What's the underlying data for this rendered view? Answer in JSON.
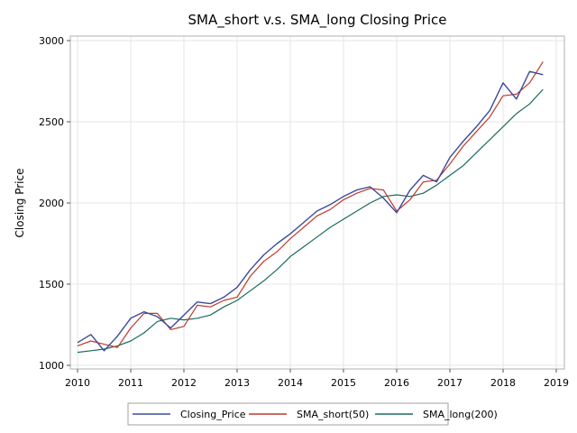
{
  "chart_data": {
    "type": "line",
    "title": "SMA_short v.s. SMA_long Closing Price",
    "xlabel": "",
    "ylabel": "Closing Price",
    "xlim": [
      2010,
      2019
    ],
    "ylim": [
      1000,
      3000
    ],
    "x_ticks": [
      "2010",
      "2011",
      "2012",
      "2013",
      "2014",
      "2015",
      "2016",
      "2017",
      "2018",
      "2019"
    ],
    "y_ticks": [
      "1000",
      "1500",
      "2000",
      "2500",
      "3000"
    ],
    "grid": true,
    "legend_position": "bottom",
    "x_dates": [
      "2010-01",
      "2010-04",
      "2010-07",
      "2010-10",
      "2011-01",
      "2011-04",
      "2011-07",
      "2011-10",
      "2012-01",
      "2012-04",
      "2012-07",
      "2012-10",
      "2013-01",
      "2013-04",
      "2013-07",
      "2013-10",
      "2014-01",
      "2014-04",
      "2014-07",
      "2014-10",
      "2015-01",
      "2015-04",
      "2015-07",
      "2015-10",
      "2016-01",
      "2016-04",
      "2016-07",
      "2016-10",
      "2017-01",
      "2017-04",
      "2017-07",
      "2017-10",
      "2018-01",
      "2018-04",
      "2018-07",
      "2018-10"
    ],
    "series": [
      {
        "name": "Closing_Price",
        "color": "#3b4b9a",
        "values": [
          1140,
          1190,
          1090,
          1180,
          1290,
          1330,
          1300,
          1230,
          1310,
          1390,
          1380,
          1420,
          1480,
          1590,
          1680,
          1750,
          1810,
          1880,
          1950,
          1990,
          2040,
          2080,
          2100,
          2030,
          1940,
          2080,
          2170,
          2130,
          2280,
          2380,
          2470,
          2570,
          2740,
          2640,
          2810,
          2790
        ]
      },
      {
        "name": "SMA_short(50)",
        "color": "#c0392b",
        "values": [
          1120,
          1150,
          1130,
          1110,
          1230,
          1320,
          1320,
          1220,
          1240,
          1370,
          1360,
          1400,
          1420,
          1550,
          1640,
          1700,
          1780,
          1850,
          1920,
          1960,
          2020,
          2060,
          2090,
          2080,
          1950,
          2020,
          2130,
          2140,
          2240,
          2350,
          2440,
          2530,
          2660,
          2670,
          2740,
          2870
        ]
      },
      {
        "name": "SMA_long(200)",
        "color": "#1a6b5c",
        "values": [
          1080,
          1090,
          1100,
          1120,
          1150,
          1200,
          1270,
          1290,
          1280,
          1290,
          1310,
          1360,
          1400,
          1460,
          1520,
          1590,
          1670,
          1730,
          1790,
          1850,
          1900,
          1950,
          2000,
          2040,
          2050,
          2040,
          2060,
          2110,
          2170,
          2230,
          2310,
          2390,
          2470,
          2550,
          2610,
          2700
        ]
      }
    ]
  }
}
